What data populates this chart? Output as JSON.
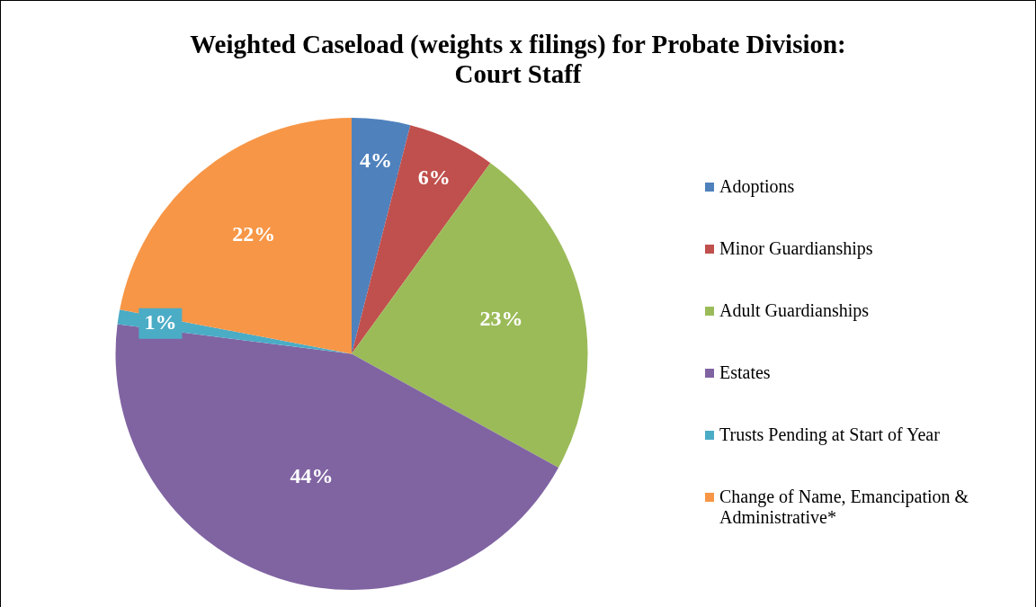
{
  "chart_data": {
    "type": "pie",
    "title": "Weighted Caseload (weights x filings) for Probate Division:\nCourt Staff",
    "categories": [
      "Adoptions",
      "Minor Guardianships",
      "Adult Guardianships",
      "Estates",
      "Trusts Pending at Start of Year",
      "Change of Name, Emancipation & Administrative*"
    ],
    "values": [
      4,
      6,
      23,
      44,
      1,
      22
    ],
    "colors": [
      "#4f81bd",
      "#c0504d",
      "#9bbb59",
      "#8064a2",
      "#4bacc6",
      "#f79646"
    ],
    "value_labels": [
      "4%",
      "6%",
      "23%",
      "44%",
      "1%",
      "22%"
    ],
    "legend": "right"
  }
}
